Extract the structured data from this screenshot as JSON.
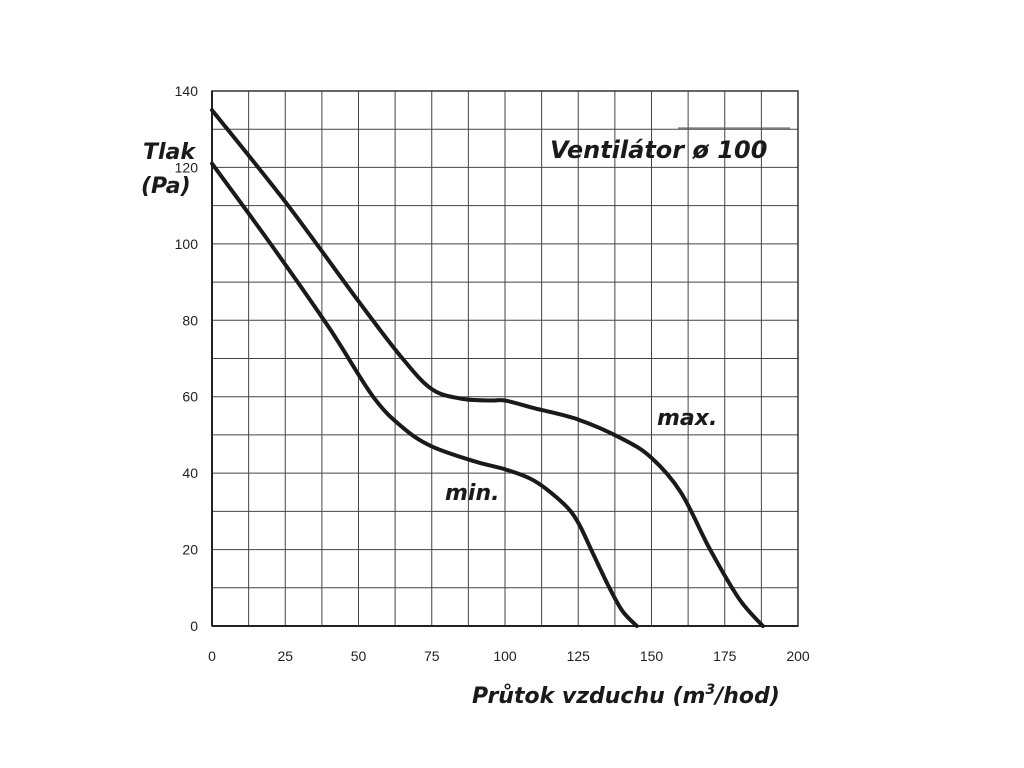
{
  "chart_data": {
    "type": "line",
    "title": "Ventilátor ø 100",
    "xlabel": "Průtok vzduchu (m",
    "xlabel_sup": "3",
    "xlabel_end": "/hod)",
    "ylabel_line1": "Tlak",
    "ylabel_line2": "(Pa)",
    "xlim": [
      0,
      200
    ],
    "ylim": [
      0,
      140
    ],
    "x_ticks": [
      0,
      25,
      50,
      75,
      100,
      125,
      150,
      175,
      200
    ],
    "y_ticks": [
      0,
      20,
      40,
      60,
      80,
      100,
      120,
      140
    ],
    "x_grid_step": 12.5,
    "y_grid_step": 10,
    "grid": true,
    "series": [
      {
        "name": "max.",
        "points": [
          [
            0,
            135
          ],
          [
            25,
            111
          ],
          [
            50,
            85
          ],
          [
            65,
            70
          ],
          [
            75,
            62
          ],
          [
            85,
            59.5
          ],
          [
            95,
            59
          ],
          [
            100,
            59
          ],
          [
            110,
            57
          ],
          [
            125,
            54
          ],
          [
            140,
            49
          ],
          [
            150,
            44
          ],
          [
            160,
            35
          ],
          [
            170,
            20
          ],
          [
            180,
            7
          ],
          [
            188,
            0
          ]
        ]
      },
      {
        "name": "min.",
        "points": [
          [
            0,
            121
          ],
          [
            20,
            100
          ],
          [
            40,
            78
          ],
          [
            55,
            60
          ],
          [
            65,
            52
          ],
          [
            75,
            47
          ],
          [
            90,
            43
          ],
          [
            100,
            41
          ],
          [
            110,
            38
          ],
          [
            120,
            32
          ],
          [
            125,
            27
          ],
          [
            130,
            19
          ],
          [
            135,
            11
          ],
          [
            140,
            4
          ],
          [
            145,
            0
          ]
        ]
      }
    ]
  }
}
